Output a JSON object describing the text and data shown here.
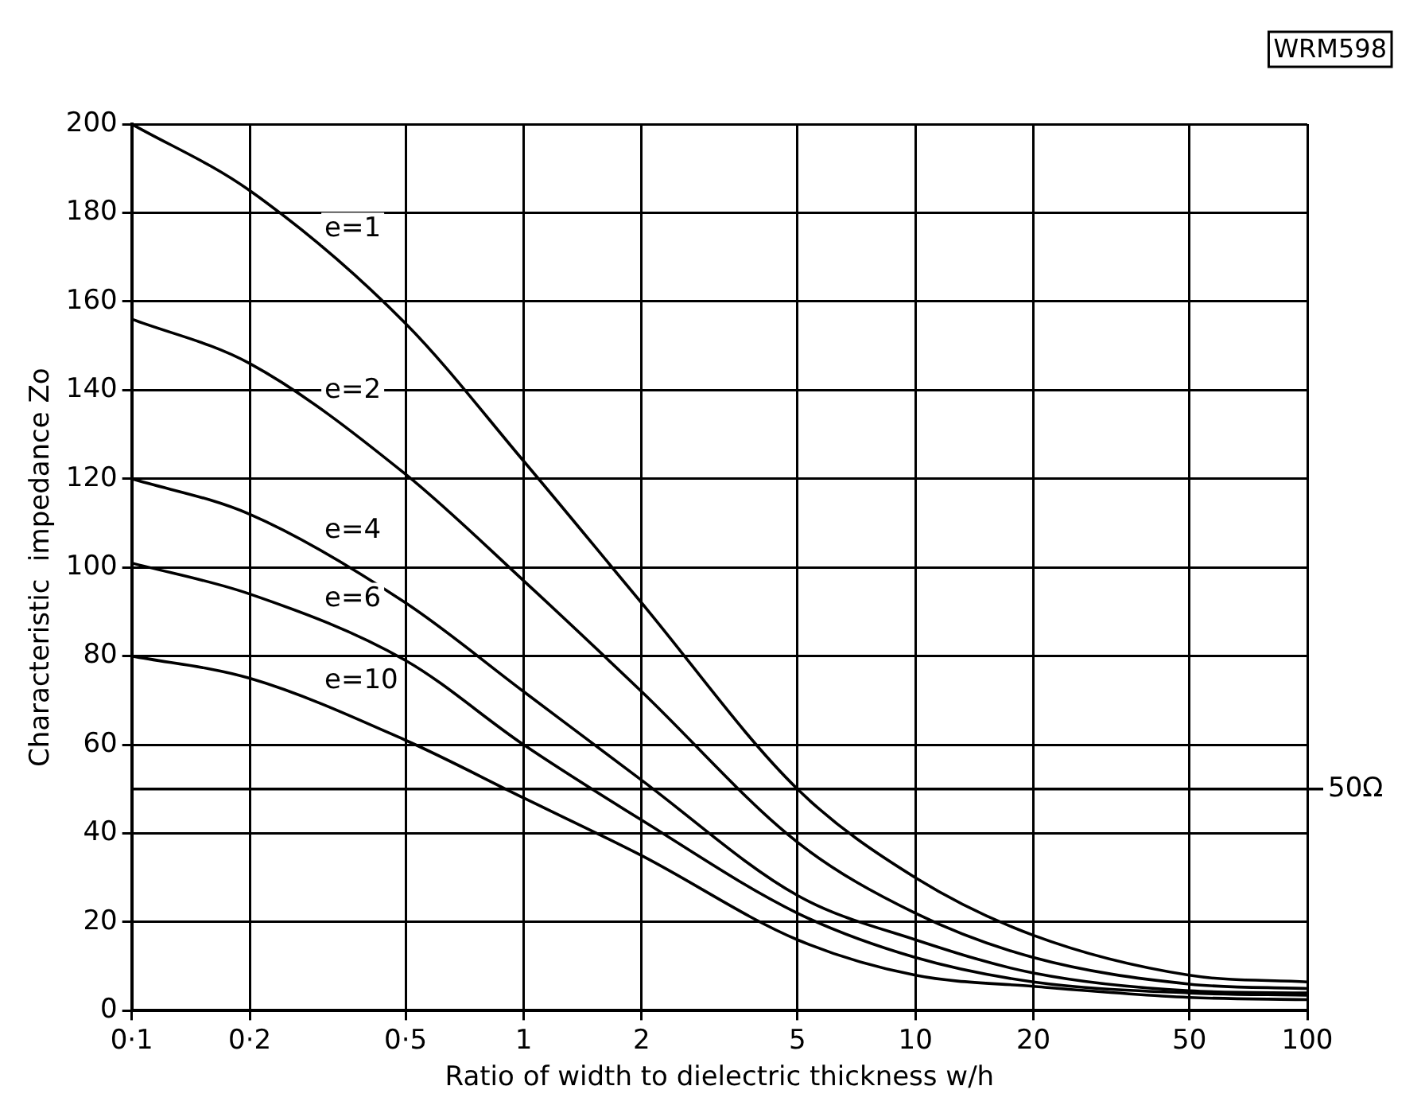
{
  "chart_data": {
    "type": "line",
    "xlabel": "Ratio of width to dielectric thickness w/h",
    "ylabel": "Characteristic  impedance Zo",
    "log": "x",
    "x": [
      0.1,
      0.2,
      0.5,
      1,
      2,
      5,
      10,
      20,
      50,
      100
    ],
    "series": [
      {
        "name": "e=1",
        "color": "#000000",
        "values": [
          200,
          185,
          155,
          124,
          92,
          50,
          30,
          17,
          8,
          6.5
        ]
      },
      {
        "name": "e=2",
        "color": "#000000",
        "values": [
          156,
          146,
          121,
          97,
          72,
          38,
          22,
          12,
          6,
          5
        ]
      },
      {
        "name": "e=4",
        "color": "#000000",
        "values": [
          120,
          112,
          92,
          72,
          52,
          26,
          16,
          8.5,
          4.5,
          4
        ]
      },
      {
        "name": "e=6",
        "color": "#000000",
        "values": [
          101,
          94,
          79,
          60,
          43,
          22,
          12,
          6.5,
          4,
          3.5
        ]
      },
      {
        "name": "e=10",
        "color": "#000000",
        "values": [
          80,
          75,
          61,
          48,
          35,
          16,
          8,
          5.5,
          3,
          2.5
        ]
      }
    ],
    "xlim": [
      0.1,
      100
    ],
    "xticks": [
      {
        "value": 0.1,
        "label": "0·1"
      },
      {
        "value": 0.2,
        "label": "0·2"
      },
      {
        "value": 0.5,
        "label": "0·5"
      },
      1,
      2,
      5,
      10,
      20,
      50,
      100
    ],
    "ylim": [
      0,
      200
    ],
    "yticks": [
      0,
      20,
      40,
      60,
      80,
      100,
      120,
      140,
      160,
      180,
      200
    ],
    "grid": true,
    "legend": false,
    "marker": "none",
    "line_style": "solid",
    "ref_lines": [
      {
        "axis": "y",
        "value": 50,
        "label": "50Ω",
        "color": "#000000"
      }
    ],
    "annotations": [
      "WRM598"
    ]
  }
}
